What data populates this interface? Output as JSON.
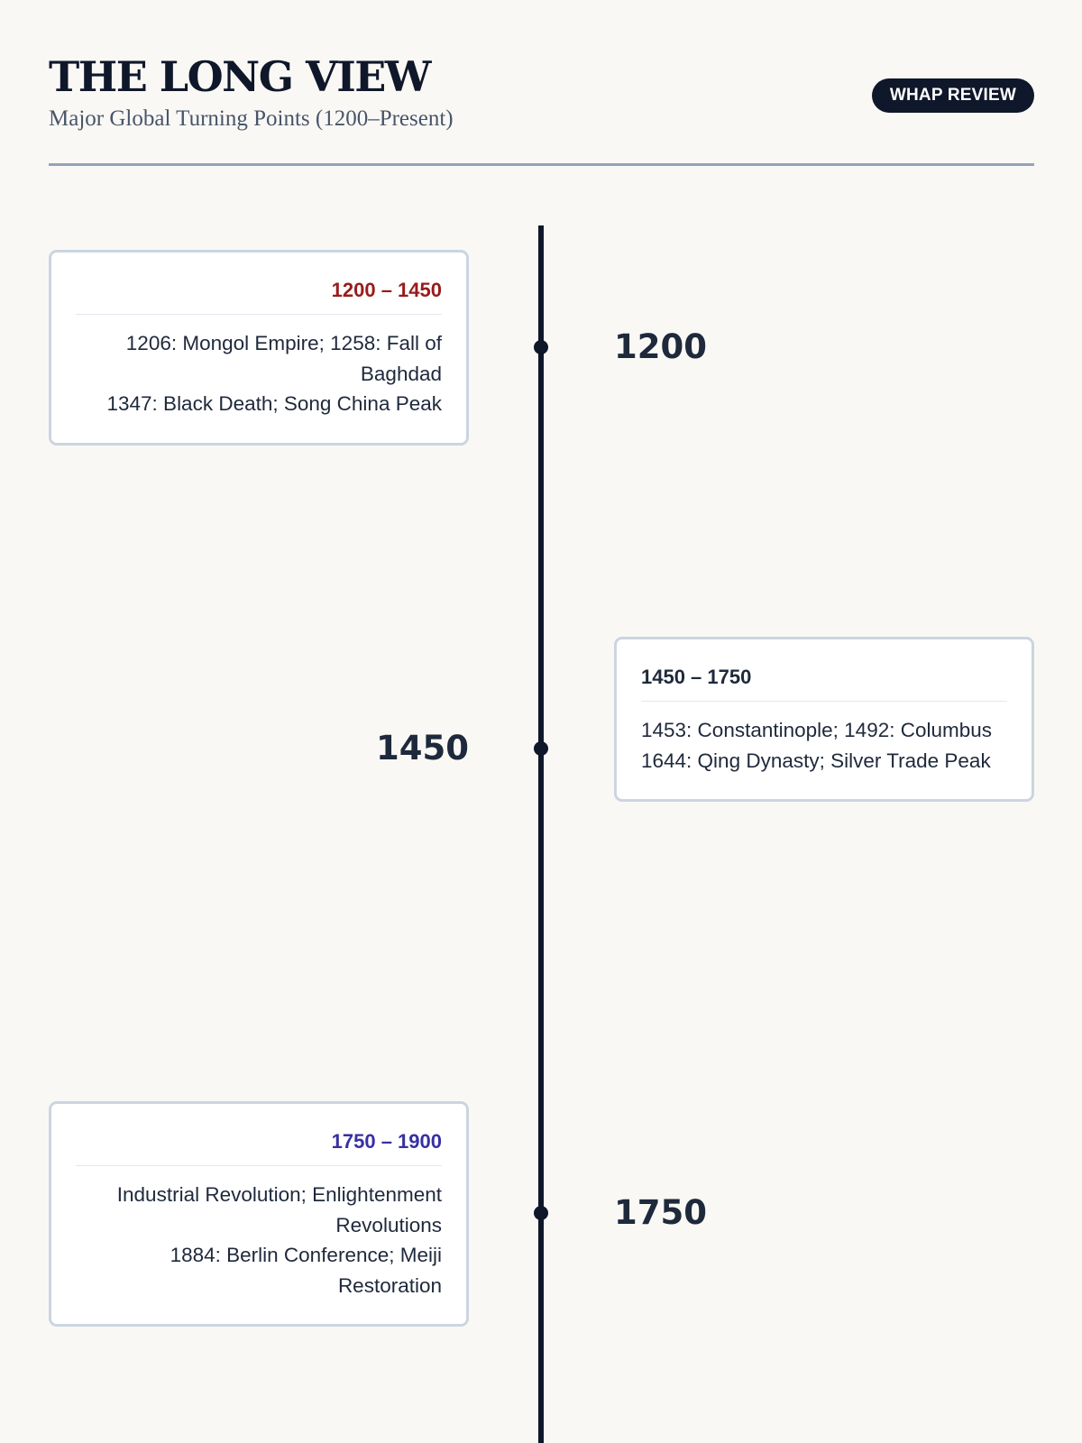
{
  "header": {
    "title": "THE LONG VIEW",
    "subtitle": "Major Global Turning Points (1200–Present)",
    "badge": "WHAP REVIEW"
  },
  "timeline": {
    "markers": [
      {
        "year": "1200"
      },
      {
        "year": "1450"
      },
      {
        "year": "1750"
      }
    ],
    "periods": [
      {
        "range": "1200 – 1450",
        "color": "#991b1b",
        "lines": [
          "1206: Mongol Empire; 1258: Fall of Baghdad",
          "1347: Black Death; Song China Peak"
        ]
      },
      {
        "range": "1450 – 1750",
        "color": "#1e293b",
        "lines": [
          "1453: Constantinople; 1492: Columbus",
          "1644: Qing Dynasty; Silver Trade Peak"
        ]
      },
      {
        "range": "1750 – 1900",
        "color": "#3730a3",
        "lines": [
          "Industrial Revolution; Enlightenment Revolutions",
          "1884: Berlin Conference; Meiji Restoration"
        ]
      }
    ]
  }
}
